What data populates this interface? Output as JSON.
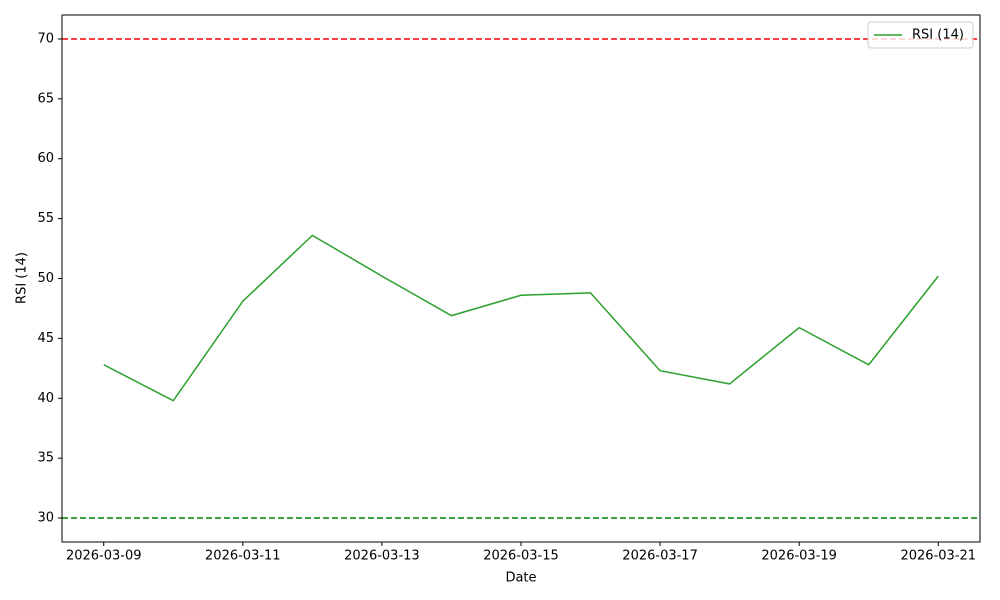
{
  "chart_data": {
    "type": "line",
    "xlabel": "Date",
    "ylabel": "RSI (14)",
    "x": [
      "2026-03-09",
      "2026-03-10",
      "2026-03-11",
      "2026-03-12",
      "2026-03-13",
      "2026-03-14",
      "2026-03-15",
      "2026-03-16",
      "2026-03-17",
      "2026-03-18",
      "2026-03-19",
      "2026-03-20",
      "2026-03-21"
    ],
    "series": [
      {
        "name": "RSI (14)",
        "color": "#2ca02c",
        "values": [
          42.8,
          39.8,
          48.1,
          53.6,
          50.2,
          46.9,
          48.6,
          48.8,
          42.3,
          41.2,
          45.9,
          42.8,
          50.2
        ]
      }
    ],
    "hlines": [
      {
        "value": 70,
        "color": "#ff0000"
      },
      {
        "value": 30,
        "color": "#008000"
      }
    ],
    "ylim": [
      28,
      72
    ],
    "yticks": [
      30,
      35,
      40,
      45,
      50,
      55,
      60,
      65,
      70
    ],
    "xticks": [
      "2026-03-09",
      "2026-03-11",
      "2026-03-13",
      "2026-03-15",
      "2026-03-17",
      "2026-03-19",
      "2026-03-21"
    ],
    "legend": "upper right",
    "grid": false
  }
}
